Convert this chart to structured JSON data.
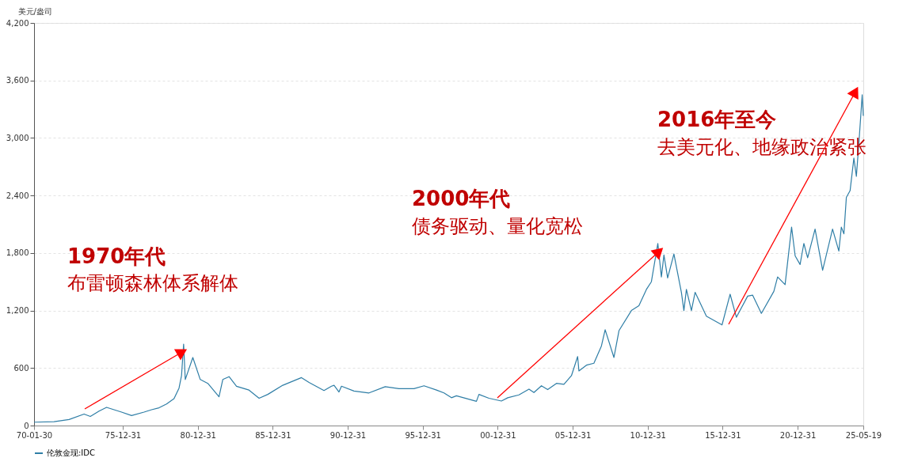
{
  "chart_data": {
    "type": "line",
    "ylabel": "美元/盎司",
    "annotations": [
      "1970年代",
      "布雷顿森林体系解体",
      "2000年代",
      "债务驱动、量化宽松",
      "2016年至今",
      "去美元化、地缘政治紧张"
    ],
    "x": [
      "1970-01-30",
      "1971-06",
      "1972-06",
      "1973-06",
      "1973-11",
      "1974-06",
      "1974-12",
      "1975-06",
      "1975-12",
      "1976-08",
      "1977-06",
      "1977-12",
      "1978-06",
      "1978-12",
      "1979-06",
      "1979-10",
      "1979-12",
      "1980-01-21",
      "1980-03",
      "1980-09",
      "1981-03",
      "1981-09",
      "1982-06",
      "1982-09",
      "1983-02",
      "1983-08",
      "1984-06",
      "1985-02",
      "1985-09",
      "1986-09",
      "1987-12",
      "1988-06",
      "1989-06",
      "1989-12",
      "1990-02",
      "1990-06",
      "1990-08",
      "1991-06",
      "1992-06",
      "1993-07",
      "1994-06",
      "1995-06",
      "1996-02",
      "1996-12",
      "1997-06",
      "1997-12",
      "1998-04",
      "1999-08",
      "1999-10",
      "2000-06",
      "2001-04",
      "2001-09",
      "2002-06",
      "2003-02",
      "2003-06",
      "2003-12",
      "2004-05",
      "2004-12",
      "2005-06",
      "2005-12",
      "2006-05",
      "2006-06",
      "2006-12",
      "2007-06",
      "2007-12",
      "2008-03",
      "2008-10",
      "2009-02",
      "2009-12",
      "2010-06",
      "2010-12",
      "2011-04",
      "2011-09-05",
      "2011-12",
      "2012-02",
      "2012-05",
      "2012-10",
      "2013-04",
      "2013-06",
      "2013-08",
      "2013-12",
      "2014-03",
      "2014-12",
      "2015-12-17",
      "2016-07",
      "2016-12",
      "2017-09",
      "2018-01",
      "2018-08",
      "2019-06",
      "2019-09",
      "2020-03",
      "2020-08-06",
      "2020-11",
      "2021-03",
      "2021-06",
      "2021-09",
      "2022-03",
      "2022-09",
      "2023-05",
      "2023-10",
      "2023-12",
      "2024-02",
      "2024-04",
      "2024-07",
      "2024-10",
      "2024-12",
      "2025-02",
      "2025-04-22",
      "2025-05-19"
    ],
    "series": [
      {
        "name": "伦敦金现:IDC",
        "color": "#2f7ea6",
        "values": [
          35,
          40,
          63,
          120,
          95,
          150,
          190,
          165,
          140,
          104,
          140,
          165,
          185,
          225,
          280,
          390,
          520,
          850,
          480,
          710,
          480,
          440,
          300,
          480,
          510,
          410,
          370,
          285,
          325,
          420,
          500,
          450,
          365,
          410,
          420,
          350,
          410,
          360,
          340,
          405,
          385,
          385,
          415,
          370,
          340,
          290,
          310,
          253,
          325,
          285,
          256,
          290,
          320,
          380,
          345,
          415,
          375,
          440,
          430,
          520,
          720,
          570,
          630,
          650,
          830,
          1000,
          710,
          990,
          1200,
          1250,
          1420,
          1500,
          1900,
          1550,
          1780,
          1540,
          1790,
          1390,
          1200,
          1420,
          1200,
          1390,
          1140,
          1050,
          1370,
          1130,
          1350,
          1360,
          1170,
          1400,
          1550,
          1470,
          2070,
          1770,
          1680,
          1900,
          1750,
          2050,
          1620,
          2050,
          1820,
          2070,
          2000,
          2380,
          2450,
          2790,
          2600,
          2950,
          3450,
          3230
        ]
      }
    ],
    "xlim": [
      "1970-01-30",
      "2025-05-19"
    ],
    "xticks": [
      {
        "value": "1970-01-30",
        "label": "70-01-30"
      },
      {
        "value": "1975-12-31",
        "label": "75-12-31"
      },
      {
        "value": "1980-12-31",
        "label": "80-12-31"
      },
      {
        "value": "1985-12-31",
        "label": "85-12-31"
      },
      {
        "value": "1990-12-31",
        "label": "90-12-31"
      },
      {
        "value": "1995-12-31",
        "label": "95-12-31"
      },
      {
        "value": "2000-12-31",
        "label": "00-12-31"
      },
      {
        "value": "2005-12-31",
        "label": "05-12-31"
      },
      {
        "value": "2010-12-31",
        "label": "10-12-31"
      },
      {
        "value": "2015-12-31",
        "label": "15-12-31"
      },
      {
        "value": "2020-12-31",
        "label": "20-12-31"
      },
      {
        "value": "2025-05-19",
        "label": "25-05-19"
      }
    ],
    "ylim": [
      0,
      4200
    ],
    "yticks": [
      0,
      600,
      {
        "value": 1200,
        "label": "1,200"
      },
      {
        "value": 1800,
        "label": "1,800"
      },
      {
        "value": 2400,
        "label": "2,400"
      },
      {
        "value": 3000,
        "label": "3,000"
      },
      {
        "value": 3600,
        "label": "3,600"
      },
      {
        "value": 4200,
        "label": "4,200"
      }
    ],
    "grid": "y",
    "legend": "bottom",
    "marker": "none",
    "line_style": "solid"
  }
}
